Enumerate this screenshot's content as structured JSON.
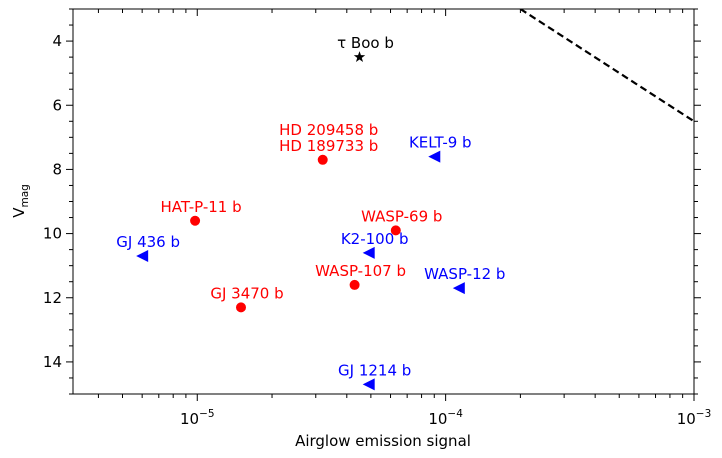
{
  "chart_data": {
    "type": "scatter",
    "title": "",
    "xlabel": "Airglow emission signal",
    "ylabel_main": "V",
    "ylabel_sub": "mag",
    "xscale": "log",
    "xlim": [
      3.16e-06,
      0.001
    ],
    "ylim": [
      15,
      3
    ],
    "y_inverted": true,
    "x_ticks": [
      {
        "base": "10",
        "exp": "−5",
        "value": 1e-05
      },
      {
        "base": "10",
        "exp": "−4",
        "value": 0.0001
      },
      {
        "base": "10",
        "exp": "−3",
        "value": 0.001
      }
    ],
    "y_ticks": [
      "4",
      "6",
      "8",
      "10",
      "12",
      "14"
    ],
    "threshold_line": {
      "style": "dashed",
      "color": "#000000",
      "points": [
        [
          0.0002,
          3
        ],
        [
          0.001,
          6.5
        ]
      ]
    },
    "points": [
      {
        "label": "τ Boo b",
        "x": 4.5e-05,
        "y": 4.5,
        "marker": "star",
        "color": "#000000"
      },
      {
        "label": "HD 209458 b\nHD 189733 b",
        "x": 3.2e-05,
        "y": 7.7,
        "marker": "circle",
        "color": "#ff0000"
      },
      {
        "label": "KELT-9 b",
        "x": 9e-05,
        "y": 7.6,
        "marker": "triangle-left",
        "color": "#0000ff"
      },
      {
        "label": "HAT-P-11 b",
        "x": 9.8e-06,
        "y": 9.6,
        "marker": "circle",
        "color": "#ff0000"
      },
      {
        "label": "WASP-69 b",
        "x": 6.3e-05,
        "y": 9.9,
        "marker": "circle",
        "color": "#ff0000"
      },
      {
        "label": "K2-100 b",
        "x": 4.9e-05,
        "y": 10.6,
        "marker": "triangle-left",
        "color": "#0000ff"
      },
      {
        "label": "GJ 436 b",
        "x": 6e-06,
        "y": 10.7,
        "marker": "triangle-left",
        "color": "#0000ff"
      },
      {
        "label": "WASP-107 b",
        "x": 4.3e-05,
        "y": 11.6,
        "marker": "circle",
        "color": "#ff0000"
      },
      {
        "label": "WASP-12 b",
        "x": 0.000113,
        "y": 11.7,
        "marker": "triangle-left",
        "color": "#0000ff"
      },
      {
        "label": "GJ 3470 b",
        "x": 1.5e-05,
        "y": 12.3,
        "marker": "circle",
        "color": "#ff0000"
      },
      {
        "label": "GJ 1214 b",
        "x": 4.9e-05,
        "y": 14.7,
        "marker": "triangle-left",
        "color": "#0000ff"
      }
    ]
  }
}
